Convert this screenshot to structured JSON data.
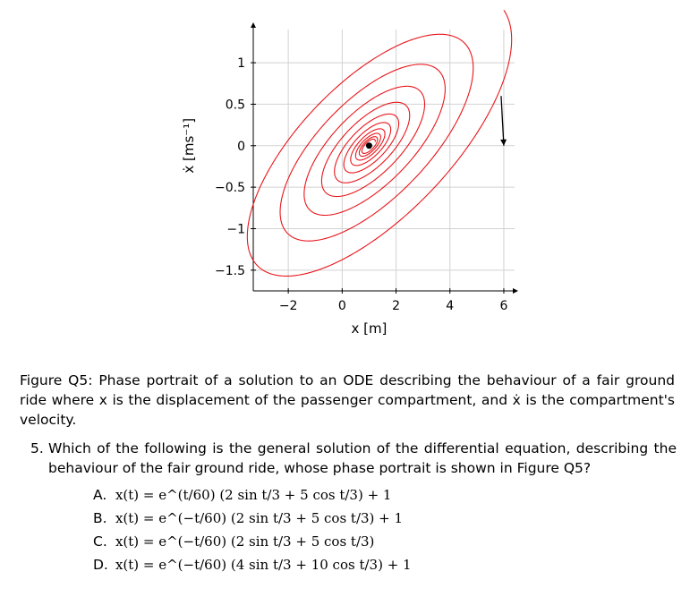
{
  "chart_data": {
    "type": "line",
    "xlabel": "x [m]",
    "ylabel": "ẋ [ms⁻¹]",
    "xlim": [
      -3.3,
      6.4
    ],
    "ylim": [
      -1.75,
      1.4
    ],
    "x_ticks": [
      "−2",
      "0",
      "2",
      "4",
      "6"
    ],
    "x_tick_values": [
      -2,
      0,
      2,
      4,
      6
    ],
    "y_ticks": [
      "1",
      "0.5",
      "0",
      "−0.5",
      "−1",
      "−1.5"
    ],
    "y_tick_values": [
      1,
      0.5,
      0,
      -0.5,
      -1,
      -1.5
    ],
    "grid": true,
    "series": [
      {
        "kind": "spiral",
        "model": "x(t) = e^(−t/60)(2 sin t/3 + 5 cos t/3) + 1",
        "t_range": [
          0,
          190
        ],
        "equilibrium": [
          1,
          0
        ]
      }
    ],
    "equilibrium_point": {
      "x": 1,
      "y": 0
    },
    "arrow": {
      "from": [
        5.9,
        0.6
      ],
      "to": [
        6.0,
        0.0
      ]
    },
    "colors": {
      "trajectory": "#e8161b",
      "grid": "#d2d2d2",
      "axis": "#000000"
    }
  },
  "caption": {
    "text": "Figure Q5: Phase portrait of a solution to an ODE describing the behaviour of a fair ground ride where x is the displacement of the passenger compartment, and ẋ is the compartment's velocity."
  },
  "question": {
    "number": "5.",
    "text": "Which of the following is the general solution of the differential equation, describing the behaviour of the fair ground ride, whose phase portrait is shown in Figure Q5?",
    "options": [
      {
        "letter": "A.",
        "formula": "x(t) = e^(t/60) (2 sin t/3 + 5 cos t/3) + 1"
      },
      {
        "letter": "B.",
        "formula": "x(t) = e^(−t/60) (2 sin t/3 + 5 cos t/3) + 1"
      },
      {
        "letter": "C.",
        "formula": "x(t) = e^(−t/60) (2 sin t/3 + 5 cos t/3)"
      },
      {
        "letter": "D.",
        "formula": "x(t) = e^(−t/60) (4 sin t/3 + 10 cos t/3) + 1"
      }
    ]
  }
}
